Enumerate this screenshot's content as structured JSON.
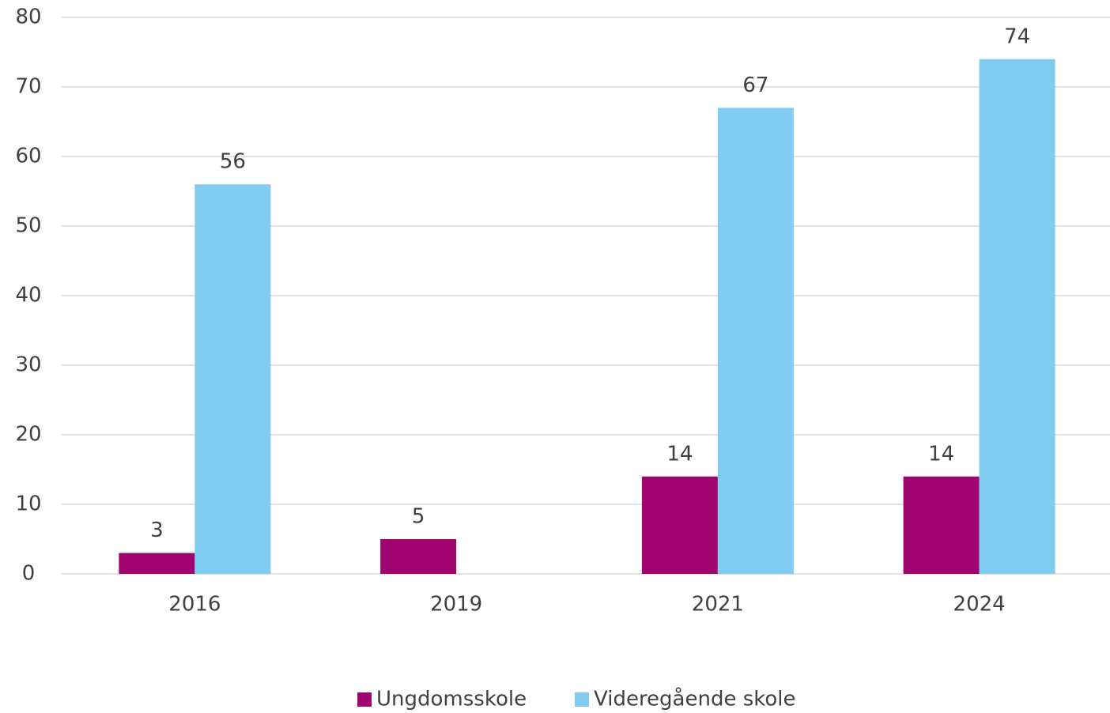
{
  "chart_data": {
    "type": "bar",
    "categories": [
      "2016",
      "2019",
      "2021",
      "2024"
    ],
    "series": [
      {
        "name": "Ungdomsskole",
        "color": "#a0056f",
        "values": [
          3,
          5,
          14,
          14
        ]
      },
      {
        "name": "Videregående skole",
        "color": "#80cdf1",
        "values": [
          56,
          null,
          67,
          74
        ]
      }
    ],
    "ylim": [
      0,
      80
    ],
    "yticks": [
      0,
      10,
      20,
      30,
      40,
      50,
      60,
      70,
      80
    ],
    "grid": true,
    "legend": "bottom"
  }
}
